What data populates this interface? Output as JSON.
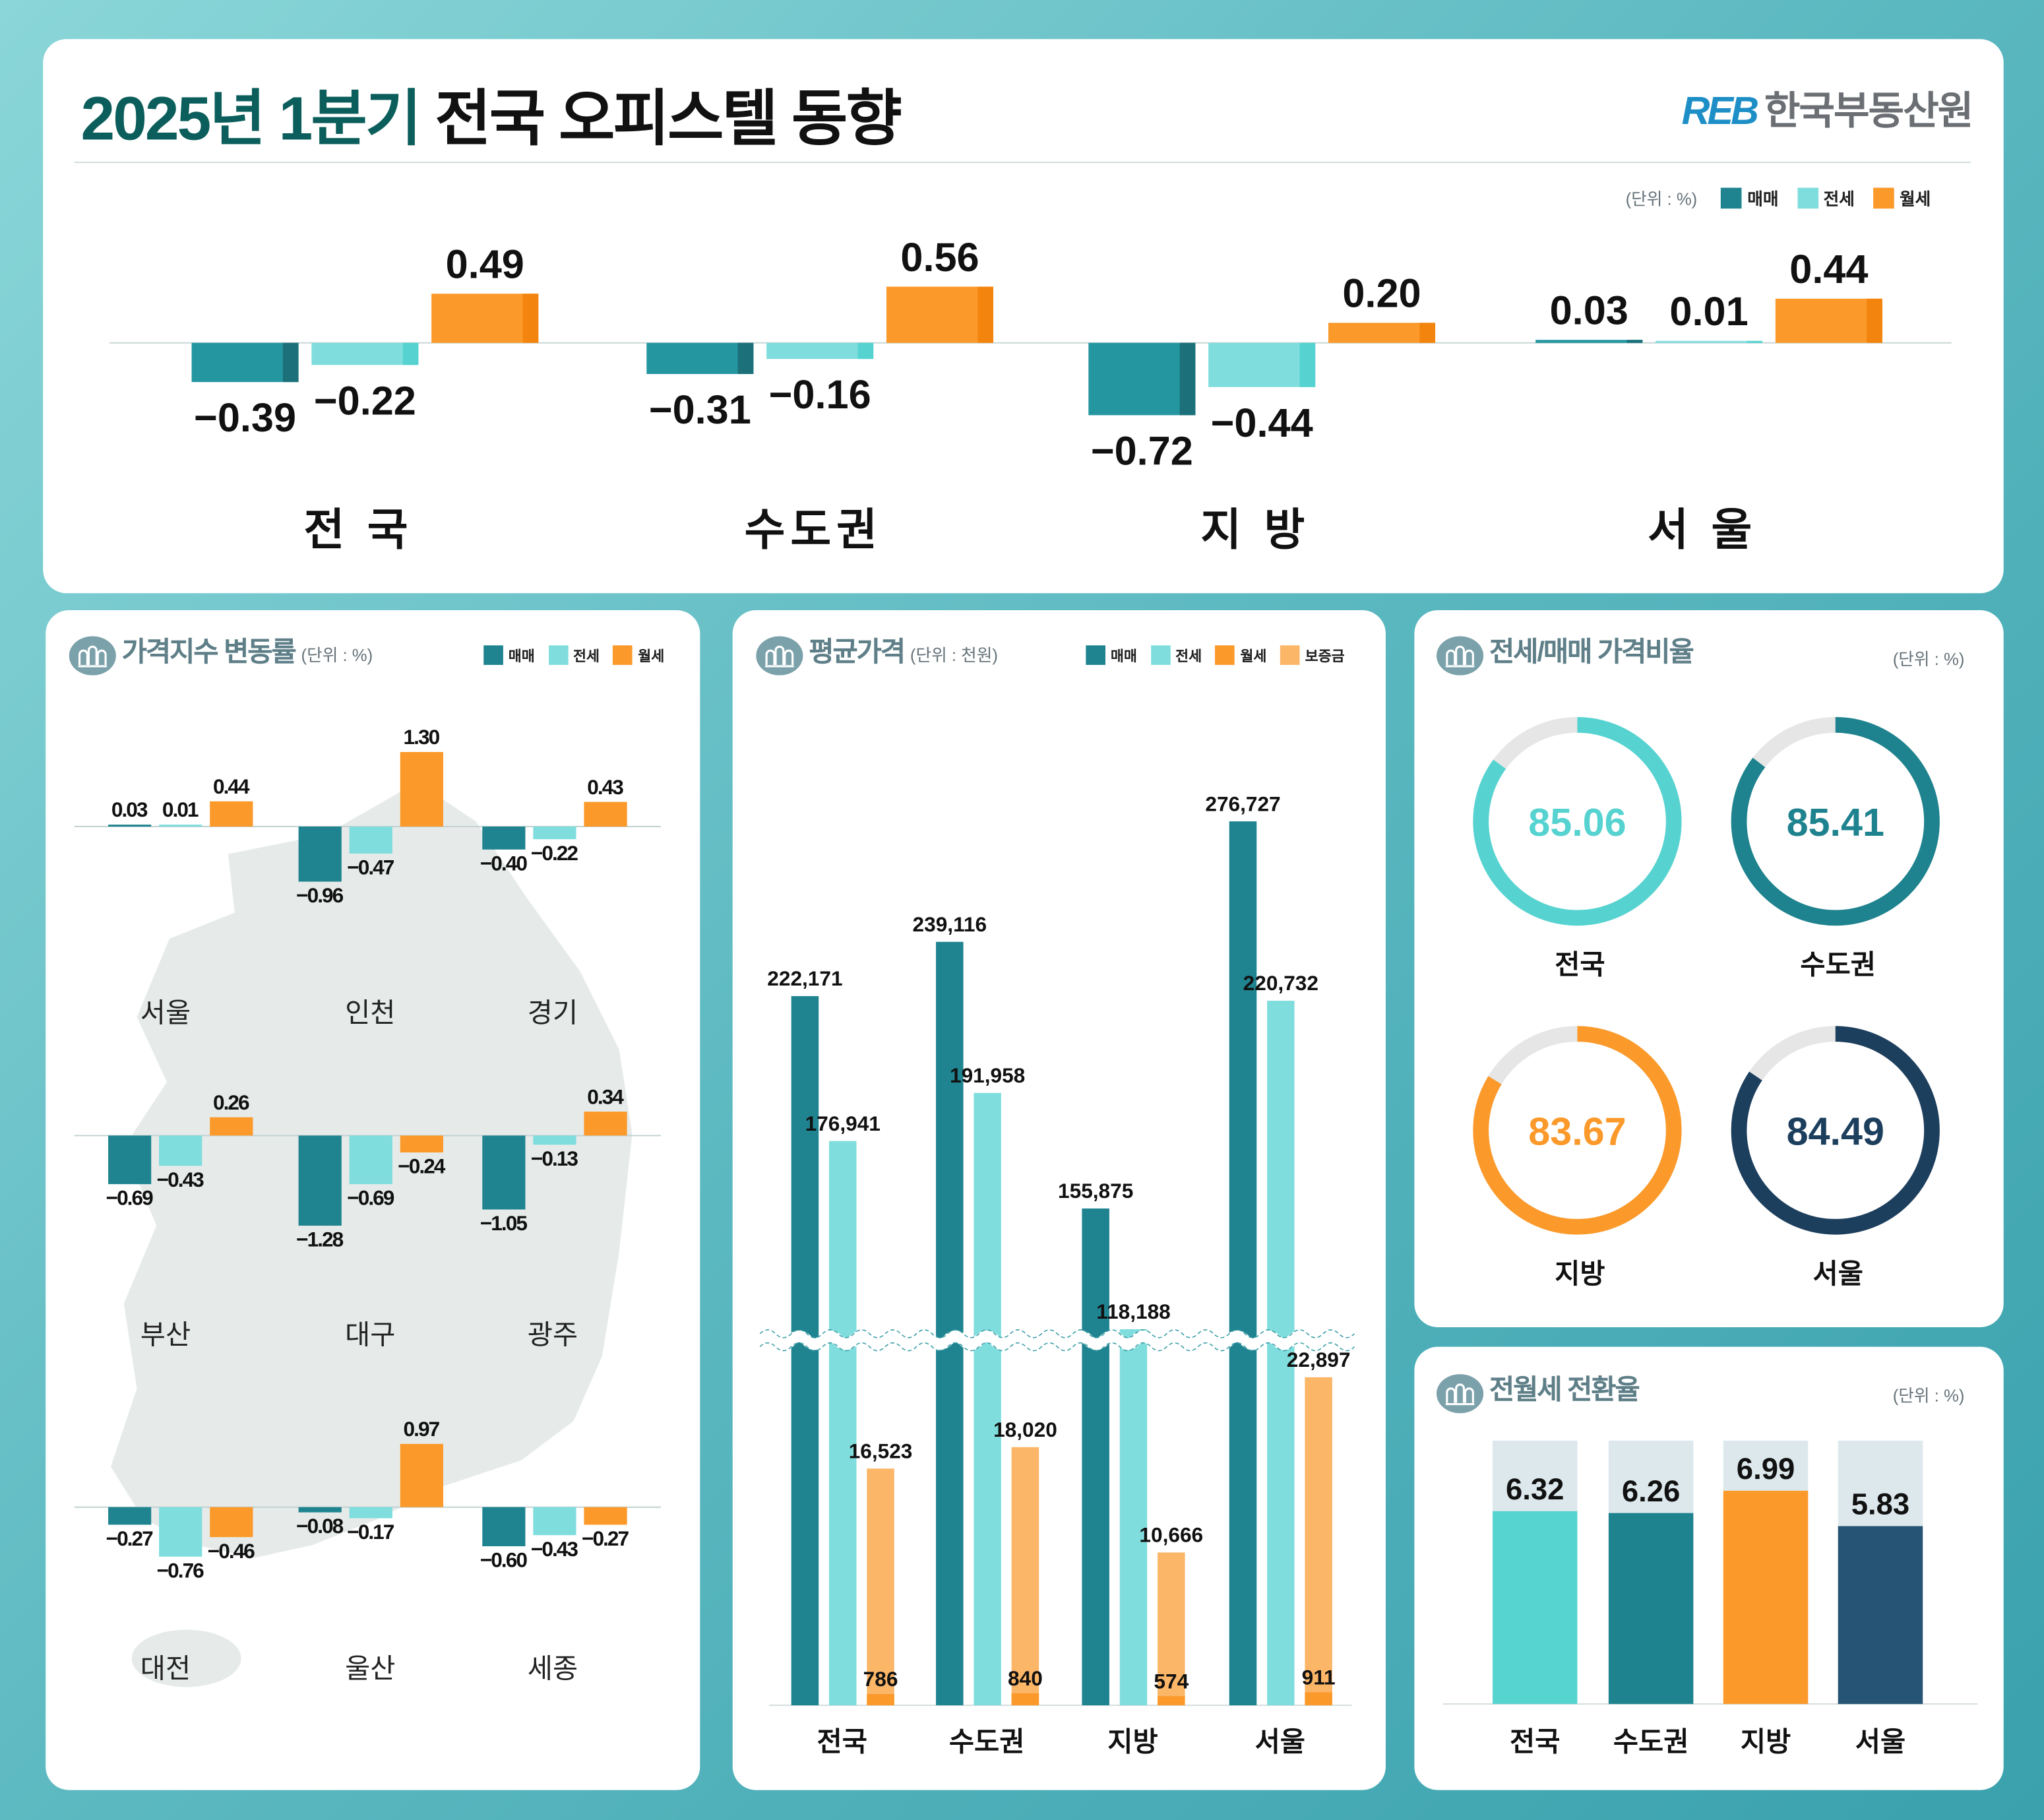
{
  "header": {
    "title_part1": "2025년 1분기",
    "title_part2": "전국 오피스텔 동향",
    "logo_mark": "REB",
    "logo_text": "한국부동산원"
  },
  "legend_labels": {
    "sale": "매매",
    "jeonse": "전세",
    "monthly": "월세",
    "deposit": "보증금"
  },
  "colors": {
    "sale": "#1f8490",
    "sale_dark": "#1b7079",
    "top_sale": "#2396a0",
    "jeonse": "#80dddd",
    "jeonse_dark": "#56d3d0",
    "monthly": "#fb992a",
    "monthly_dark": "#f3850f",
    "deposit": "#fcb668",
    "navy": "#1d3f5e",
    "steel": "#255474"
  },
  "chart_data": [
    {
      "type": "bar",
      "unit": "(단위 : %)",
      "categories": [
        "전 국",
        "수도권",
        "지 방",
        "서 울"
      ],
      "series": [
        {
          "name": "매매",
          "values": [
            -0.39,
            -0.31,
            -0.72,
            0.03
          ]
        },
        {
          "name": "전세",
          "values": [
            -0.22,
            -0.16,
            -0.44,
            0.01
          ]
        },
        {
          "name": "월세",
          "values": [
            0.49,
            0.56,
            0.2,
            0.44
          ]
        }
      ],
      "legend": "top-right"
    },
    {
      "type": "bar",
      "title": "가격지수 변동률",
      "unit": "(단위 : %)",
      "categories": [
        "서울",
        "인천",
        "경기",
        "부산",
        "대구",
        "광주",
        "대전",
        "울산",
        "세종"
      ],
      "series": [
        {
          "name": "매매",
          "values": [
            0.03,
            -0.96,
            -0.4,
            -0.69,
            -1.28,
            -1.05,
            -0.27,
            -0.08,
            -0.6
          ]
        },
        {
          "name": "전세",
          "values": [
            0.01,
            -0.47,
            -0.22,
            -0.43,
            -0.69,
            -0.13,
            -0.76,
            -0.17,
            -0.43
          ]
        },
        {
          "name": "월세",
          "values": [
            0.44,
            1.3,
            0.43,
            0.26,
            -0.24,
            0.34,
            -0.46,
            0.97,
            -0.27
          ]
        }
      ],
      "legend": "top-right"
    },
    {
      "type": "bar",
      "title": "평균가격",
      "unit": "(단위 : 천원)",
      "categories": [
        "전국",
        "수도권",
        "지방",
        "서울"
      ],
      "series": [
        {
          "name": "매매",
          "values": [
            222171,
            239116,
            155875,
            276727
          ]
        },
        {
          "name": "전세",
          "values": [
            176941,
            191958,
            118188,
            220732
          ]
        },
        {
          "name": "월세",
          "values": [
            786,
            840,
            574,
            911
          ]
        },
        {
          "name": "보증금",
          "values": [
            16523,
            18020,
            10666,
            22897
          ]
        }
      ],
      "axis_break": true,
      "legend": "top-right"
    },
    {
      "type": "pie",
      "title": "전세/매매 가격비율",
      "unit": "(단위 : %)",
      "categories": [
        "전국",
        "수도권",
        "지방",
        "서울"
      ],
      "values": [
        85.06,
        85.41,
        83.67,
        84.49
      ],
      "colors": [
        "#56d3d0",
        "#1e838e",
        "#fb992a",
        "#1d3f5e"
      ]
    },
    {
      "type": "bar",
      "title": "전월세 전환율",
      "unit": "(단위 : %)",
      "categories": [
        "전국",
        "수도권",
        "지방",
        "서울"
      ],
      "values": [
        6.32,
        6.26,
        6.99,
        5.83
      ],
      "colors": [
        "#56d4d0",
        "#1e838e",
        "#fb992a",
        "#255474"
      ]
    }
  ]
}
